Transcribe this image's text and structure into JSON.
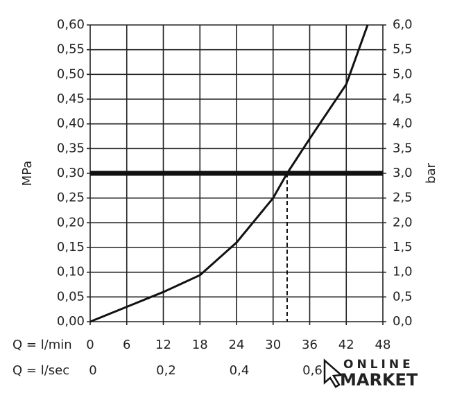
{
  "chart_data": {
    "type": "line",
    "y_label": "MPa",
    "y2_label": "bar",
    "x_row_label": "Q = l/min",
    "x2_row_label": "Q = l/sec",
    "xlim": [
      0,
      48
    ],
    "xticks": [
      0,
      6,
      12,
      18,
      24,
      30,
      36,
      42,
      48
    ],
    "x2lim": [
      0,
      0.8
    ],
    "x2ticks": [
      0,
      {
        "value": 0.2,
        "label": "0,2"
      },
      {
        "value": 0.4,
        "label": "0,4"
      },
      {
        "value": 0.6,
        "label": "0,6"
      }
    ],
    "ylim": [
      0,
      0.6
    ],
    "yticks": [
      {
        "value": 0,
        "label": "0,00"
      },
      {
        "value": 0.05,
        "label": "0,05"
      },
      {
        "value": 0.1,
        "label": "0,10"
      },
      {
        "value": 0.15,
        "label": "0,15"
      },
      {
        "value": 0.2,
        "label": "0,20"
      },
      {
        "value": 0.25,
        "label": "0,25"
      },
      {
        "value": 0.3,
        "label": "0,30"
      },
      {
        "value": 0.35,
        "label": "0,35"
      },
      {
        "value": 0.4,
        "label": "0,40"
      },
      {
        "value": 0.45,
        "label": "0,45"
      },
      {
        "value": 0.5,
        "label": "0,50"
      },
      {
        "value": 0.55,
        "label": "0,55"
      },
      {
        "value": 0.6,
        "label": "0,60"
      }
    ],
    "y2lim": [
      0,
      6
    ],
    "y2ticks": [
      {
        "value": 0,
        "label": "0,0"
      },
      {
        "value": 0.5,
        "label": "0,5"
      },
      {
        "value": 1,
        "label": "1,0"
      },
      {
        "value": 1.5,
        "label": "1,5"
      },
      {
        "value": 2,
        "label": "2,0"
      },
      {
        "value": 2.5,
        "label": "2,5"
      },
      {
        "value": 3,
        "label": "3,0"
      },
      {
        "value": 3.5,
        "label": "3,5"
      },
      {
        "value": 4,
        "label": "4,0"
      },
      {
        "value": 4.5,
        "label": "4,5"
      },
      {
        "value": 5,
        "label": "5,0"
      },
      {
        "value": 5.5,
        "label": "5,5"
      },
      {
        "value": 6,
        "label": "6,0"
      }
    ],
    "grid": true,
    "series": [
      {
        "color": "#111111",
        "x": [
          0,
          6,
          12,
          18,
          24,
          30,
          32.3,
          36,
          42,
          45.5
        ],
        "values": [
          0,
          0.03,
          0.06,
          0.094,
          0.16,
          0.25,
          0.3,
          0.37,
          0.48,
          0.6
        ]
      }
    ],
    "reference": {
      "x": 32.3,
      "y": 0.3
    }
  },
  "watermark": {
    "line1": "ONLINE",
    "line2": "MARKET"
  }
}
